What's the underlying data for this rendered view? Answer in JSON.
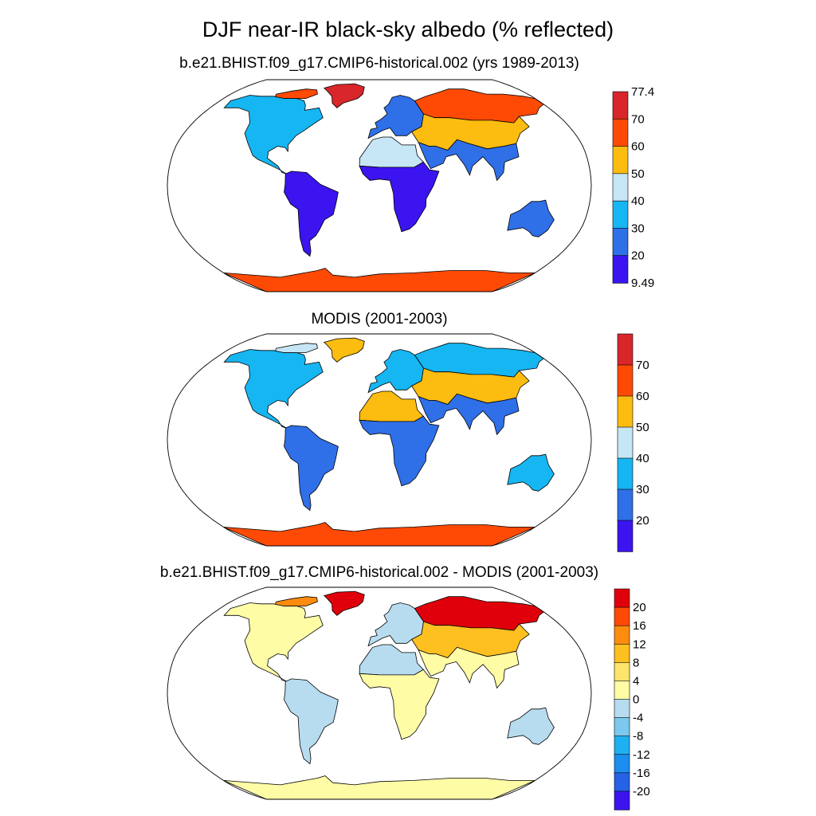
{
  "title": "DJF near-IR black-sky albedo (% reflected)",
  "colors": {
    "blue": [
      "#3b14f0",
      "#2f6fe8",
      "#16b6f2",
      "#c6e6f6"
    ],
    "orange": [
      "#fcbc10",
      "#ff4a06",
      "#d8262a"
    ],
    "diff": [
      "#3b14f0",
      "#2662e6",
      "#1b8ef0",
      "#1fb0f2",
      "#7cc8ee",
      "#b7dcef",
      "#fffca6",
      "#fde46a",
      "#fec020",
      "#ff8c0e",
      "#ff4a06",
      "#e0000b",
      "#d8262a"
    ],
    "land": "#ffffff",
    "outline": "#000000"
  },
  "chart_data": [
    {
      "type": "heatmap",
      "title": "b.e21.BHIST.f09_g17.CMIP6-historical.002 (yrs 1989-2013)",
      "colorbar": {
        "ticks": [
          "77.4",
          "70",
          "60",
          "50",
          "40",
          "30",
          "20",
          "9.49"
        ],
        "min": 9.49,
        "max": 77.4
      },
      "regions": [
        {
          "name": "Greenland",
          "value": 75
        },
        {
          "name": "Canadian Arctic",
          "value": 60
        },
        {
          "name": "North America",
          "value": 30
        },
        {
          "name": "South America",
          "value": 18
        },
        {
          "name": "Sahara",
          "value": 42
        },
        {
          "name": "Central Africa",
          "value": 18
        },
        {
          "name": "Europe",
          "value": 28
        },
        {
          "name": "Siberia",
          "value": 65
        },
        {
          "name": "Central Asia",
          "value": 50
        },
        {
          "name": "South Asia",
          "value": 28
        },
        {
          "name": "Australia",
          "value": 28
        },
        {
          "name": "Antarctica",
          "value": 68
        }
      ]
    },
    {
      "type": "heatmap",
      "title": "MODIS (2001-2003)",
      "colorbar": {
        "ticks": [
          "70",
          "60",
          "50",
          "40",
          "30",
          "20"
        ],
        "min": 10,
        "max": 80
      },
      "regions": [
        {
          "name": "Greenland",
          "value": 55
        },
        {
          "name": "Canadian Arctic",
          "value": 40
        },
        {
          "name": "North America",
          "value": 30
        },
        {
          "name": "South America",
          "value": 25
        },
        {
          "name": "Sahara",
          "value": 50
        },
        {
          "name": "Central Africa",
          "value": 20
        },
        {
          "name": "Europe",
          "value": 30
        },
        {
          "name": "Siberia",
          "value": 38
        },
        {
          "name": "Central Asia",
          "value": 50
        },
        {
          "name": "South Asia",
          "value": 28
        },
        {
          "name": "Australia",
          "value": 30
        },
        {
          "name": "Antarctica",
          "value": 65
        }
      ]
    },
    {
      "type": "heatmap",
      "title": "b.e21.BHIST.f09_g17.CMIP6-historical.002 - MODIS (2001-2003)",
      "colorbar": {
        "ticks": [
          "20",
          "16",
          "12",
          "8",
          "4",
          "0",
          "-4",
          "-8",
          "-12",
          "-16",
          "-20"
        ],
        "min": -24,
        "max": 24
      },
      "regions": [
        {
          "name": "Greenland",
          "value": 22
        },
        {
          "name": "Canadian Arctic",
          "value": 14
        },
        {
          "name": "North America",
          "value": 2
        },
        {
          "name": "South America",
          "value": -3
        },
        {
          "name": "Sahara",
          "value": -2
        },
        {
          "name": "Central Africa",
          "value": 2
        },
        {
          "name": "Europe",
          "value": -2
        },
        {
          "name": "Siberia",
          "value": 20
        },
        {
          "name": "Central Asia",
          "value": 10
        },
        {
          "name": "South Asia",
          "value": 2
        },
        {
          "name": "Australia",
          "value": -3
        },
        {
          "name": "Antarctica",
          "value": 2
        }
      ]
    }
  ]
}
